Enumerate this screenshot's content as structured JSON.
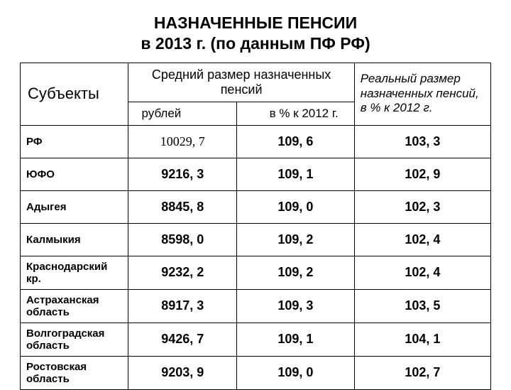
{
  "title_line1": "НАЗНАЧЕННЫЕ ПЕНСИИ",
  "title_line2": "в 2013 г. (по данным ПФ РФ)",
  "head_subjects": "Субъекты",
  "head_mid": "Средний размер назначенных пенсий",
  "head_rub": "рублей",
  "head_pct": "в % к 2012 г.",
  "head_real": "Реальный размер назначенных пенсий, в % к 2012 г.",
  "rows": [
    {
      "label": "РФ",
      "rub": "10029, 7",
      "pct": "109, 6",
      "real": "103, 3",
      "rub_class": "rf-rub"
    },
    {
      "label": "ЮФО",
      "rub": "9216, 3",
      "pct": "109, 1",
      "real": "102, 9",
      "rub_class": "row-val"
    },
    {
      "label": "Адыгея",
      "rub": "8845, 8",
      "pct": "109, 0",
      "real": "102, 3",
      "rub_class": "row-val"
    },
    {
      "label": "Калмыкия",
      "rub": "8598, 0",
      "pct": "109, 2",
      "real": "102, 4",
      "rub_class": "row-val"
    },
    {
      "label": "Краснодарский кр.",
      "rub": "9232, 2",
      "pct": "109, 2",
      "real": "102, 4",
      "rub_class": "row-val"
    },
    {
      "label": "Астраханская область",
      "rub": "8917, 3",
      "pct": "109, 3",
      "real": "103, 5",
      "rub_class": "row-val"
    },
    {
      "label": "Волгоградская область",
      "rub": "9426, 7",
      "pct": "109, 1",
      "real": "104, 1",
      "rub_class": "row-val"
    },
    {
      "label": "Ростовская область",
      "rub": "9203, 9",
      "pct": "109, 0",
      "real": "102, 7",
      "rub_class": "row-val"
    }
  ]
}
